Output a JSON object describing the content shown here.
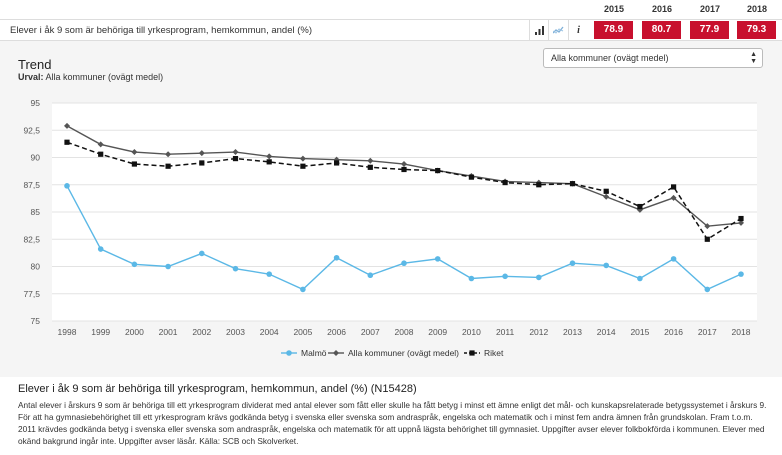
{
  "header": {
    "years": [
      "2015",
      "2016",
      "2017",
      "2018"
    ],
    "indicator_title": "Elever i åk 9 som är behöriga till yrkesprogram, hemkommun, andel (%)",
    "values": [
      "78.9",
      "80.7",
      "77.9",
      "79.3"
    ],
    "icons": [
      "bar-chart-icon",
      "trend-icon",
      "info-icon"
    ],
    "info_glyph": "i",
    "value_color": "#c8102e"
  },
  "trend": {
    "title": "Trend",
    "selection_label": "Urval:",
    "selection_value": "Alla kommuner (ovägt medel)",
    "dropdown_value": "Alla kommuner (ovägt medel)"
  },
  "chart_data": {
    "type": "line",
    "x": [
      "1998",
      "1999",
      "2000",
      "2001",
      "2002",
      "2003",
      "2004",
      "2005",
      "2006",
      "2007",
      "2008",
      "2009",
      "2010",
      "2011",
      "2012",
      "2013",
      "2014",
      "2015",
      "2016",
      "2017",
      "2018"
    ],
    "ylim": [
      75,
      95
    ],
    "yticks": [
      "95",
      "92,5",
      "90",
      "87,5",
      "85",
      "82,5",
      "80",
      "77,5",
      "75"
    ],
    "grid": true,
    "legend_position": "bottom",
    "series": [
      {
        "name": "Malmö",
        "color": "#5bb8e6",
        "style": "solid",
        "marker": "circle",
        "values": [
          87.4,
          81.6,
          80.2,
          80.0,
          81.2,
          79.8,
          79.3,
          77.9,
          80.8,
          79.2,
          80.3,
          80.7,
          78.9,
          79.1,
          79.0,
          80.3,
          80.1,
          78.9,
          80.7,
          77.9,
          79.3
        ]
      },
      {
        "name": "Alla kommuner (ovägt medel)",
        "color": "#555555",
        "style": "solid",
        "marker": "diamond",
        "values": [
          92.9,
          91.2,
          90.5,
          90.3,
          90.4,
          90.5,
          90.1,
          89.9,
          89.8,
          89.7,
          89.4,
          88.8,
          88.3,
          87.8,
          87.7,
          87.6,
          86.4,
          85.2,
          86.3,
          83.7,
          84.0
        ]
      },
      {
        "name": "Riket",
        "color": "#111111",
        "style": "dashed",
        "marker": "square",
        "values": [
          91.4,
          90.3,
          89.4,
          89.2,
          89.5,
          89.9,
          89.6,
          89.2,
          89.5,
          89.1,
          88.9,
          88.8,
          88.2,
          87.7,
          87.5,
          87.6,
          86.9,
          85.5,
          87.3,
          82.5,
          84.4
        ]
      }
    ]
  },
  "description": {
    "title": "Elever i åk 9 som är behöriga till yrkesprogram, hemkommun, andel (%) (N15428)",
    "text": "Antal elever i årskurs 9 som är behöriga till ett yrkesprogram dividerat med antal elever som fått eller skulle ha fått betyg i minst ett ämne enligt det mål- och kunskapsrelaterade betygssystemet i årskurs 9. För att ha gymnasiebehörighet till ett yrkesprogram krävs godkända betyg i svenska eller svenska som andraspråk, engelska och matematik och i minst fem andra ämnen från grundskolan. Fram t.o.m. 2011 krävdes godkända betyg i svenska eller svenska som andraspråk, engelska och matematik för att uppnå lägsta behörighet till gymnasiet. Uppgifter avser elever folkbokförda i kommunen. Elever med okänd bakgrund ingår inte. Uppgifter avser läsår. Källa: SCB och Skolverket."
  }
}
